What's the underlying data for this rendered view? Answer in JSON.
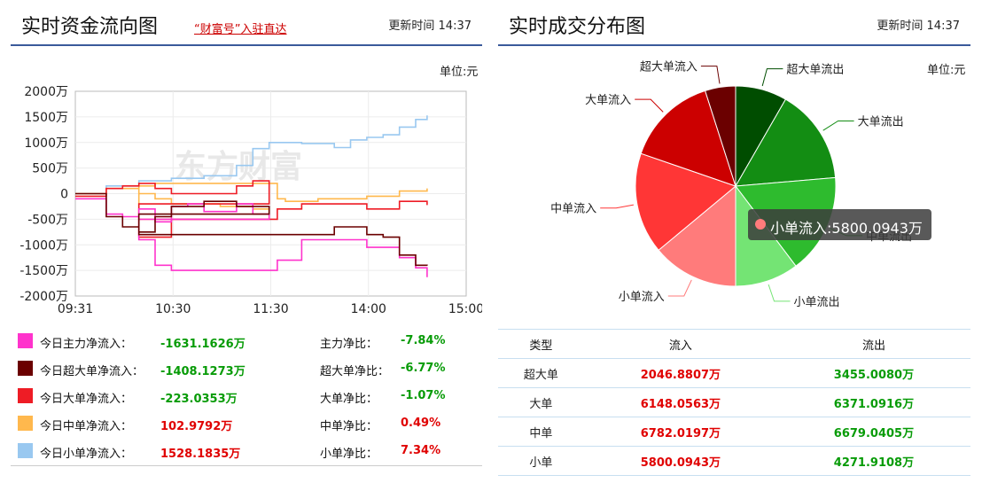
{
  "left": {
    "title": "实时资金流向图",
    "link": "“财富号”入驻直达",
    "update": "更新时间 14:37",
    "unit": "单位:元",
    "watermark": "东方财富"
  },
  "right": {
    "title": "实时成交分布图",
    "update": "更新时间 14:37",
    "unit": "单位:元",
    "tooltip": "小单流入:5800.0943万",
    "table": {
      "headers": [
        "类型",
        "流入",
        "流出"
      ],
      "rows": [
        [
          "超大单",
          "2046.8807万",
          "3455.0080万"
        ],
        [
          "大单",
          "6148.0563万",
          "6371.0916万"
        ],
        [
          "中单",
          "6782.0197万",
          "6679.0405万"
        ],
        [
          "小单",
          "5800.0943万",
          "4271.9108万"
        ]
      ]
    }
  },
  "stats": [
    {
      "label": "今日主力净流入：",
      "value": "-1631.1626万",
      "ratio_label": "主力净比：",
      "ratio": "-7.84%",
      "color": "#ff33cc",
      "sign": "neg"
    },
    {
      "label": "今日超大单净流入：",
      "value": "-1408.1273万",
      "ratio_label": "超大单净比：",
      "ratio": "-6.77%",
      "color": "#6b0000",
      "sign": "neg"
    },
    {
      "label": "今日大单净流入：",
      "value": "-223.0353万",
      "ratio_label": "大单净比：",
      "ratio": "-1.07%",
      "color": "#ee1c25",
      "sign": "neg"
    },
    {
      "label": "今日中单净流入：",
      "value": "102.9792万",
      "ratio_label": "中单净比：",
      "ratio": "0.49%",
      "color": "#ffb84d",
      "sign": "pos"
    },
    {
      "label": "今日小单净流入：",
      "value": "1528.1835万",
      "ratio_label": "小单净比：",
      "ratio": "7.34%",
      "color": "#99c8f0",
      "sign": "pos"
    }
  ],
  "chart_data": [
    {
      "type": "line",
      "yticks": [
        "2000万",
        "1500万",
        "1000万",
        "500万",
        "0",
        "-500万",
        "-1000万",
        "-1500万",
        "-2000万"
      ],
      "xticks": [
        "09:31",
        "10:30",
        "11:30",
        "14:00",
        "15:00"
      ],
      "ylim": [
        -2000,
        2000
      ],
      "grid": true,
      "series": [
        {
          "color": "#99c8f0",
          "x": [
            "09:31",
            "09:50",
            "10:10",
            "10:30",
            "10:50",
            "11:10",
            "11:20",
            "11:30",
            "13:10",
            "13:20",
            "13:40",
            "13:50",
            "14:00",
            "14:10",
            "14:20",
            "14:30",
            "14:37"
          ],
          "values": [
            0,
            150,
            250,
            300,
            350,
            550,
            880,
            1000,
            1000,
            980,
            900,
            1050,
            1100,
            1150,
            1300,
            1450,
            1528
          ]
        },
        {
          "color": "#ffb84d",
          "x": [
            "09:31",
            "09:50",
            "10:10",
            "10:20",
            "10:30",
            "11:00",
            "11:20",
            "11:30",
            "11:40",
            "11:50",
            "12:00",
            "13:05",
            "13:10",
            "13:30",
            "14:00",
            "14:20",
            "14:37"
          ],
          "values": [
            0,
            100,
            0,
            -100,
            -200,
            -250,
            -300,
            -500,
            150,
            200,
            200,
            -100,
            -150,
            -100,
            -50,
            50,
            103
          ]
        },
        {
          "color": "#ee1c25",
          "x": [
            "09:31",
            "09:50",
            "10:00",
            "10:10",
            "10:20",
            "10:30",
            "10:50",
            "11:10",
            "11:20",
            "11:30",
            "11:40",
            "12:00",
            "13:05",
            "13:20",
            "13:40",
            "14:00",
            "14:20",
            "14:37"
          ],
          "values": [
            -50,
            100,
            150,
            200,
            100,
            0,
            0,
            150,
            250,
            -200,
            -850,
            -500,
            -300,
            -200,
            -200,
            -300,
            -150,
            -223
          ]
        },
        {
          "color": "#ff33cc",
          "x": [
            "09:31",
            "09:50",
            "10:00",
            "10:10",
            "10:20",
            "10:30",
            "10:40",
            "10:50",
            "11:10",
            "11:20",
            "11:30",
            "11:40",
            "11:50",
            "12:00",
            "13:05",
            "13:20",
            "13:40",
            "14:00",
            "14:20",
            "14:30",
            "14:37"
          ],
          "values": [
            -100,
            -400,
            -450,
            -300,
            -550,
            -250,
            -200,
            -350,
            -200,
            -400,
            -500,
            -900,
            -1400,
            -1500,
            -1300,
            -900,
            -900,
            -1050,
            -1250,
            -1450,
            -1631
          ]
        },
        {
          "color": "#6b0000",
          "x": [
            "09:31",
            "09:50",
            "10:00",
            "10:10",
            "10:20",
            "10:30",
            "10:50",
            "11:10",
            "11:30",
            "11:40",
            "12:00",
            "13:05",
            "13:30",
            "13:40",
            "14:00",
            "14:10",
            "14:20",
            "14:30",
            "14:37"
          ],
          "values": [
            0,
            -450,
            -650,
            -750,
            -450,
            -250,
            -150,
            -250,
            -400,
            -800,
            -800,
            -800,
            -800,
            -650,
            -800,
            -850,
            -1200,
            -1400,
            -1408
          ]
        }
      ]
    },
    {
      "type": "pie",
      "slices": [
        {
          "label": "超大单流出",
          "value": 3455.008,
          "color": "#004d00"
        },
        {
          "label": "大单流出",
          "value": 6371.0916,
          "color": "#138d13"
        },
        {
          "label": "中单流出",
          "value": 6679.0405,
          "color": "#2ebb2e"
        },
        {
          "label": "小单流出",
          "value": 4271.9108,
          "color": "#74e474"
        },
        {
          "label": "小单流入",
          "value": 5800.0943,
          "color": "#ff7b7b"
        },
        {
          "label": "中单流入",
          "value": 6782.0197,
          "color": "#ff3636"
        },
        {
          "label": "大单流入",
          "value": 6148.0563,
          "color": "#cc0000"
        },
        {
          "label": "超大单流入",
          "value": 2046.8807,
          "color": "#6b0000"
        }
      ]
    }
  ]
}
